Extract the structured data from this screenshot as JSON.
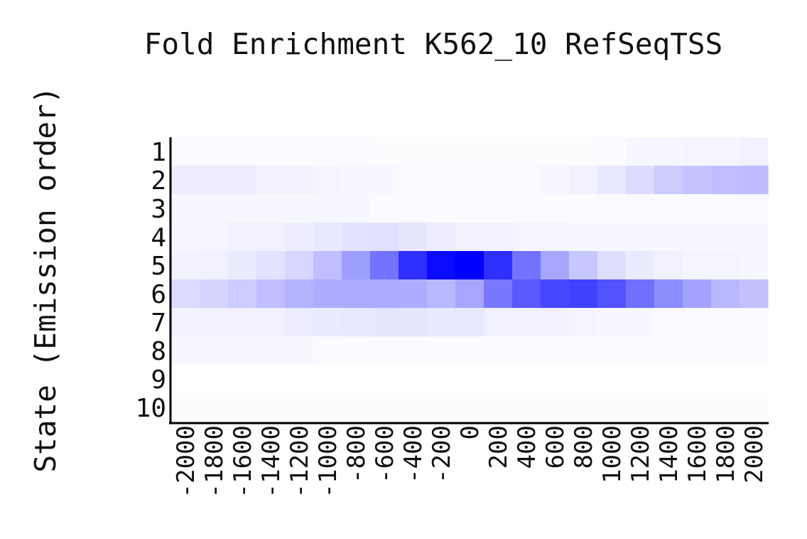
{
  "chart_data": {
    "type": "heatmap",
    "title": "Fold Enrichment K562_10 RefSeqTSS",
    "ylabel": "State (Emission order)",
    "xlabel": "",
    "x": [
      -2000,
      -1800,
      -1600,
      -1400,
      -1200,
      -1000,
      -800,
      -600,
      -400,
      -200,
      0,
      200,
      400,
      600,
      800,
      1000,
      1200,
      1400,
      1600,
      1800,
      2000
    ],
    "x_tick_labels": [
      "-2000",
      "-1800",
      "-1600",
      "-1400",
      "-1200",
      "-1000",
      "-800",
      "-600",
      "-400",
      "-200",
      "0",
      "200",
      "400",
      "600",
      "800",
      "1000",
      "1200",
      "1400",
      "1600",
      "1800",
      "2000"
    ],
    "y": [
      "1",
      "2",
      "3",
      "4",
      "5",
      "6",
      "7",
      "8",
      "9",
      "10"
    ],
    "z": [
      [
        0.02,
        0.02,
        0.02,
        0.02,
        0.02,
        0.02,
        0.02,
        0.01,
        0.01,
        0.01,
        0.01,
        0.01,
        0.01,
        0.01,
        0.01,
        0.02,
        0.03,
        0.03,
        0.04,
        0.04,
        0.05
      ],
      [
        0.07,
        0.07,
        0.07,
        0.06,
        0.05,
        0.04,
        0.03,
        0.03,
        0.02,
        0.02,
        0.02,
        0.02,
        0.02,
        0.03,
        0.05,
        0.09,
        0.14,
        0.2,
        0.23,
        0.25,
        0.26
      ],
      [
        0.03,
        0.03,
        0.03,
        0.03,
        0.03,
        0.03,
        0.03,
        0.02,
        0.02,
        0.02,
        0.02,
        0.02,
        0.02,
        0.02,
        0.02,
        0.02,
        0.02,
        0.02,
        0.02,
        0.02,
        0.02
      ],
      [
        0.04,
        0.04,
        0.05,
        0.06,
        0.07,
        0.09,
        0.11,
        0.12,
        0.1,
        0.07,
        0.05,
        0.05,
        0.04,
        0.04,
        0.03,
        0.03,
        0.03,
        0.03,
        0.03,
        0.03,
        0.03
      ],
      [
        0.05,
        0.06,
        0.08,
        0.11,
        0.16,
        0.25,
        0.38,
        0.55,
        0.82,
        0.96,
        1.0,
        0.82,
        0.55,
        0.35,
        0.22,
        0.13,
        0.08,
        0.06,
        0.04,
        0.04,
        0.03
      ],
      [
        0.14,
        0.17,
        0.2,
        0.25,
        0.3,
        0.32,
        0.33,
        0.33,
        0.32,
        0.28,
        0.35,
        0.53,
        0.65,
        0.72,
        0.75,
        0.68,
        0.56,
        0.45,
        0.36,
        0.28,
        0.24
      ],
      [
        0.05,
        0.05,
        0.05,
        0.06,
        0.07,
        0.08,
        0.09,
        0.1,
        0.1,
        0.09,
        0.09,
        0.06,
        0.05,
        0.05,
        0.04,
        0.03,
        0.03,
        0.02,
        0.02,
        0.02,
        0.02
      ],
      [
        0.03,
        0.03,
        0.03,
        0.03,
        0.03,
        0.02,
        0.02,
        0.02,
        0.02,
        0.02,
        0.02,
        0.02,
        0.02,
        0.02,
        0.02,
        0.02,
        0.02,
        0.02,
        0.02,
        0.02,
        0.02
      ],
      [
        0.0,
        0.0,
        0.0,
        0.0,
        0.0,
        0.0,
        0.0,
        0.0,
        0.0,
        0.0,
        0.0,
        0.0,
        0.0,
        0.0,
        0.0,
        0.0,
        0.0,
        0.0,
        0.0,
        0.0,
        0.0
      ],
      [
        0.01,
        0.01,
        0.01,
        0.01,
        0.01,
        0.01,
        0.01,
        0.01,
        0.01,
        0.01,
        0.01,
        0.01,
        0.01,
        0.01,
        0.01,
        0.01,
        0.01,
        0.01,
        0.01,
        0.01,
        0.01
      ]
    ],
    "z_range": [
      0,
      1
    ],
    "color_low": "#ffffff",
    "color_high": "#0000ff",
    "grid": false,
    "legend": "none"
  }
}
